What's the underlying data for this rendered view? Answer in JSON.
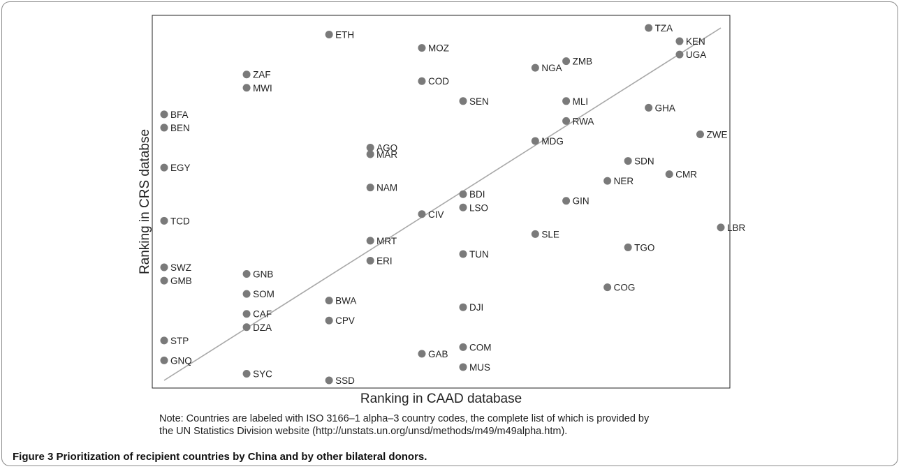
{
  "chart_data": {
    "type": "scatter",
    "title": "",
    "xlabel": "Ranking in CAAD database",
    "ylabel": "Ranking in CRS databse",
    "xlim": [
      0,
      27
    ],
    "ylim": [
      0,
      53
    ],
    "grid": false,
    "trend_line": {
      "from": [
        0,
        0
      ],
      "to": [
        27,
        53
      ]
    },
    "points": [
      {
        "label": "BFA",
        "x": 0,
        "y": 40
      },
      {
        "label": "BEN",
        "x": 0,
        "y": 38
      },
      {
        "label": "EGY",
        "x": 0,
        "y": 32
      },
      {
        "label": "TCD",
        "x": 0,
        "y": 24
      },
      {
        "label": "SWZ",
        "x": 0,
        "y": 17
      },
      {
        "label": "GMB",
        "x": 0,
        "y": 15
      },
      {
        "label": "STP",
        "x": 0,
        "y": 6
      },
      {
        "label": "GNQ",
        "x": 0,
        "y": 3
      },
      {
        "label": "ZAF",
        "x": 4,
        "y": 46
      },
      {
        "label": "MWI",
        "x": 4,
        "y": 44
      },
      {
        "label": "GNB",
        "x": 4,
        "y": 16
      },
      {
        "label": "SOM",
        "x": 4,
        "y": 13
      },
      {
        "label": "CAF",
        "x": 4,
        "y": 10
      },
      {
        "label": "DZA",
        "x": 4,
        "y": 8
      },
      {
        "label": "SYC",
        "x": 4,
        "y": 1
      },
      {
        "label": "ETH",
        "x": 8,
        "y": 52
      },
      {
        "label": "BWA",
        "x": 8,
        "y": 12
      },
      {
        "label": "CPV",
        "x": 8,
        "y": 9
      },
      {
        "label": "SSD",
        "x": 8,
        "y": 0
      },
      {
        "label": "AGO",
        "x": 10,
        "y": 35
      },
      {
        "label": "MAR",
        "x": 10,
        "y": 34
      },
      {
        "label": "NAM",
        "x": 10,
        "y": 29
      },
      {
        "label": "MRT",
        "x": 10,
        "y": 21
      },
      {
        "label": "ERI",
        "x": 10,
        "y": 18
      },
      {
        "label": "MOZ",
        "x": 12.5,
        "y": 50
      },
      {
        "label": "COD",
        "x": 12.5,
        "y": 45
      },
      {
        "label": "CIV",
        "x": 12.5,
        "y": 25
      },
      {
        "label": "GAB",
        "x": 12.5,
        "y": 4
      },
      {
        "label": "SEN",
        "x": 14.5,
        "y": 42
      },
      {
        "label": "BDI",
        "x": 14.5,
        "y": 28
      },
      {
        "label": "LSO",
        "x": 14.5,
        "y": 26
      },
      {
        "label": "TUN",
        "x": 14.5,
        "y": 19
      },
      {
        "label": "DJI",
        "x": 14.5,
        "y": 11
      },
      {
        "label": "COM",
        "x": 14.5,
        "y": 5
      },
      {
        "label": "MUS",
        "x": 14.5,
        "y": 2
      },
      {
        "label": "NGA",
        "x": 18,
        "y": 47
      },
      {
        "label": "MDG",
        "x": 18,
        "y": 36
      },
      {
        "label": "SLE",
        "x": 18,
        "y": 22
      },
      {
        "label": "ZMB",
        "x": 19.5,
        "y": 48
      },
      {
        "label": "MLI",
        "x": 19.5,
        "y": 42
      },
      {
        "label": "RWA",
        "x": 19.5,
        "y": 39
      },
      {
        "label": "GIN",
        "x": 19.5,
        "y": 27
      },
      {
        "label": "NER",
        "x": 21.5,
        "y": 30
      },
      {
        "label": "COG",
        "x": 21.5,
        "y": 14
      },
      {
        "label": "SDN",
        "x": 22.5,
        "y": 33
      },
      {
        "label": "TGO",
        "x": 22.5,
        "y": 20
      },
      {
        "label": "TZA",
        "x": 23.5,
        "y": 53
      },
      {
        "label": "GHA",
        "x": 23.5,
        "y": 41
      },
      {
        "label": "CMR",
        "x": 24.5,
        "y": 31
      },
      {
        "label": "KEN",
        "x": 25,
        "y": 51
      },
      {
        "label": "UGA",
        "x": 25,
        "y": 49
      },
      {
        "label": "ZWE",
        "x": 26,
        "y": 37
      },
      {
        "label": "LBR",
        "x": 27,
        "y": 23
      }
    ]
  },
  "note": {
    "line1": "Note: Countries are labeled with ISO 3166–1 alpha–3 country codes, the complete list of which is provided by",
    "line2": "the UN Statistics Division website (http://unstats.un.org/unsd/methods/m49/m49alpha.htm)."
  },
  "caption": {
    "label": "Figure 3",
    "text": "Prioritization of recipient countries by China and by other bilateral donors."
  },
  "colors": {
    "point": "#7a7a7a",
    "trend_line": "#a8a8a8",
    "axes": "#222222"
  }
}
